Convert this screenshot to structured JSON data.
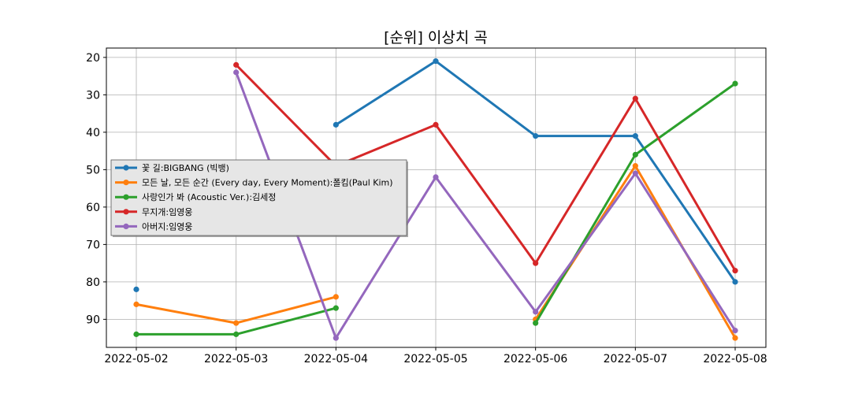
{
  "chart_data": {
    "type": "line",
    "title": "[순위] 이상치 곡",
    "xlabel": "",
    "ylabel": "",
    "categories": [
      "2022-05-02",
      "2022-05-03",
      "2022-05-04",
      "2022-05-05",
      "2022-05-06",
      "2022-05-07",
      "2022-05-08"
    ],
    "y_inverted": true,
    "ylim": [
      97.5,
      17.5
    ],
    "yticks": [
      20,
      30,
      40,
      50,
      60,
      70,
      80,
      90
    ],
    "grid": true,
    "legend_position": "center-left",
    "series": [
      {
        "name": "꽃 길:BIGBANG (빅뱅)",
        "color": "#1f77b4",
        "values": [
          82,
          null,
          38,
          21,
          41,
          41,
          80
        ]
      },
      {
        "name": "모든 날, 모든 순간 (Every day, Every Moment):폴킴(Paul Kim)",
        "color": "#ff7f0e",
        "values": [
          86,
          91,
          84,
          null,
          90,
          49,
          95
        ]
      },
      {
        "name": "사랑인가 봐 (Acoustic Ver.):김세정",
        "color": "#2ca02c",
        "values": [
          94,
          94,
          87,
          null,
          91,
          46,
          27
        ]
      },
      {
        "name": "무지개:임영웅",
        "color": "#d62728",
        "values": [
          null,
          22,
          49,
          38,
          75,
          31,
          77
        ]
      },
      {
        "name": "아버지:임영웅",
        "color": "#9467bd",
        "values": [
          null,
          24,
          95,
          52,
          88,
          51,
          93
        ]
      }
    ]
  }
}
